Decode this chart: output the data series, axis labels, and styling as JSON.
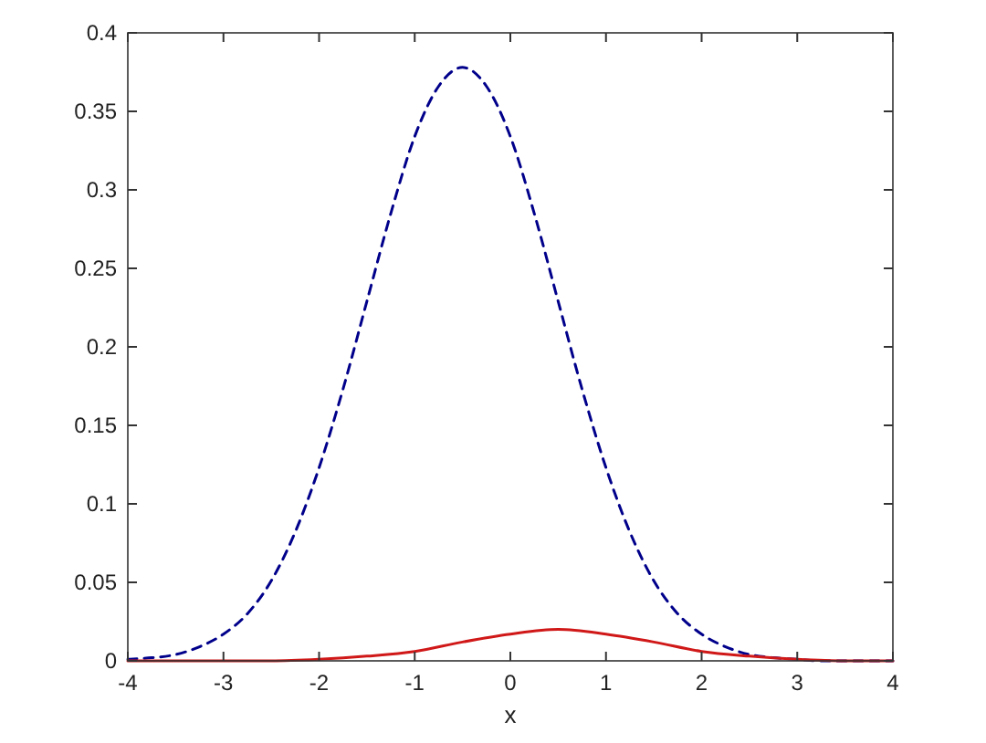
{
  "chart_data": {
    "type": "line",
    "xlabel": "x",
    "xlim": [
      -4,
      4
    ],
    "xticks": [
      -4,
      -3,
      -2,
      -1,
      0,
      1,
      2,
      3,
      4
    ],
    "ylim": [
      0,
      0.4
    ],
    "yticks": [
      0,
      0.05,
      0.1,
      0.15,
      0.2,
      0.25,
      0.3,
      0.35,
      0.4
    ],
    "marker": "none",
    "series": [
      {
        "color": "#00008b",
        "line_style": "dashed",
        "x": [
          -4,
          -3.75,
          -3.5,
          -3.25,
          -3,
          -2.75,
          -2.5,
          -2.25,
          -2,
          -1.75,
          -1.5,
          -1.25,
          -1,
          -0.75,
          -0.5,
          -0.25,
          0,
          0.25,
          0.5,
          0.75,
          1,
          1.25,
          1.5,
          1.75,
          2,
          2.25,
          2.5,
          2.75,
          3,
          3.25,
          3.5,
          3.75,
          4
        ],
        "values": [
          0.001,
          0.002,
          0.004,
          0.009,
          0.017,
          0.03,
          0.051,
          0.082,
          0.123,
          0.173,
          0.229,
          0.285,
          0.334,
          0.366,
          0.378,
          0.366,
          0.334,
          0.285,
          0.229,
          0.173,
          0.123,
          0.082,
          0.051,
          0.03,
          0.017,
          0.009,
          0.004,
          0.002,
          0.001,
          0,
          0,
          0,
          0
        ]
      },
      {
        "color": "#d01818",
        "line_style": "solid",
        "x": [
          -4,
          -3.5,
          -3,
          -2.5,
          -2,
          -1.5,
          -1,
          -0.5,
          0,
          0.5,
          1,
          1.5,
          2,
          2.5,
          3,
          3.5,
          4
        ],
        "values": [
          0,
          0,
          0,
          0,
          0.001,
          0.003,
          0.006,
          0.012,
          0.017,
          0.02,
          0.017,
          0.012,
          0.006,
          0.003,
          0.001,
          0,
          0
        ]
      }
    ]
  }
}
